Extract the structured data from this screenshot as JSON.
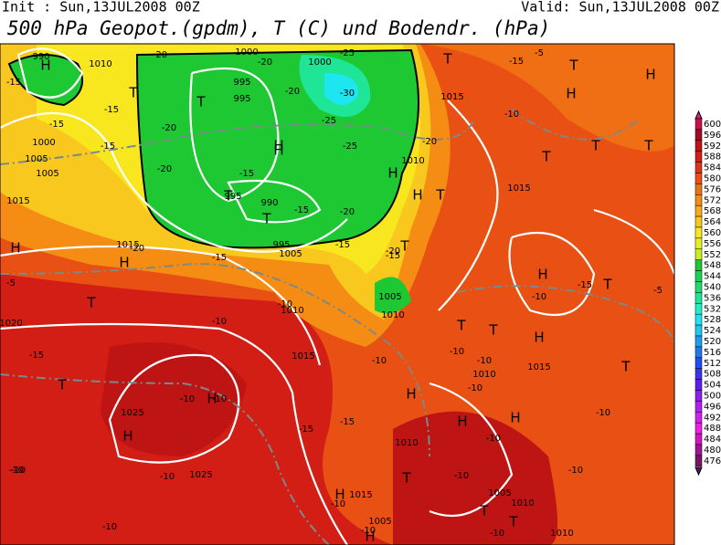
{
  "header": {
    "init": "Init : Sun,13JUL2008 00Z",
    "valid": "Valid: Sun,13JUL2008 00Z",
    "title": "500 hPa Geopot.(gpdm), T (C) und Bodendr. (hPa)"
  },
  "colorbar": {
    "ticks": [
      600,
      596,
      592,
      588,
      584,
      580,
      576,
      572,
      568,
      564,
      560,
      556,
      552,
      548,
      544,
      540,
      536,
      532,
      528,
      524,
      520,
      516,
      512,
      508,
      504,
      500,
      496,
      492,
      488,
      484,
      480,
      476
    ],
    "colors": [
      "#c8104a",
      "#a00a28",
      "#be1414",
      "#d21e14",
      "#e03214",
      "#e85014",
      "#f06e14",
      "#f58c14",
      "#f8aa1a",
      "#f8c81e",
      "#f8e61e",
      "#e6f01e",
      "#c8f01e",
      "#1ec832",
      "#1ed250",
      "#1edc6e",
      "#1ee696",
      "#1ef0c8",
      "#1ee6f0",
      "#1ec8f0",
      "#1e9ef0",
      "#1e78f0",
      "#1e50f0",
      "#3c32f0",
      "#5a1ef0",
      "#8c1ef0",
      "#b41ef0",
      "#d21ef0",
      "#f01ee6",
      "#d214be",
      "#a01496",
      "#781464"
    ]
  },
  "map_labels": [
    "990",
    "1010",
    "-20",
    "1000",
    "-20",
    "1000",
    "-25",
    "-15",
    "-5",
    "-15",
    "-15",
    "995",
    "995",
    "-30",
    "-15",
    "1015",
    "-10",
    "1000",
    "1005",
    "1005",
    "-20",
    "-25",
    "-20",
    "-25",
    "-15",
    "-20",
    "1010",
    "1015",
    "995",
    "990",
    "-15",
    "-20",
    "-20",
    "-15",
    "995",
    "-15",
    "1005",
    "-20",
    "-5",
    "1015",
    "-20",
    "-15",
    "-10",
    "-15",
    "1015",
    "-10",
    "1005",
    "1010",
    "1010",
    "1020",
    "-10",
    "-15",
    "1015",
    "-10",
    "-10",
    "-10",
    "-15",
    "1010",
    "1015",
    "-10",
    "-15",
    "-10",
    "1025",
    "-10",
    "-10",
    "-10",
    "1010",
    "-15",
    "-10",
    "-10",
    "-10",
    "1025",
    "-10",
    "1015",
    "-10",
    "1005",
    "-10",
    "-10",
    "1005",
    "1010",
    "-10",
    "1010",
    "-10",
    "-5"
  ],
  "markers": [
    "H",
    "T",
    "T",
    "H",
    "H",
    "T",
    "H",
    "T",
    "H",
    "H",
    "T",
    "T",
    "H",
    "H",
    "T",
    "T",
    "T",
    "H",
    "T",
    "H",
    "T",
    "H",
    "T",
    "T",
    "T",
    "T",
    "H",
    "H",
    "H",
    "T",
    "H",
    "T",
    "H",
    "T",
    "H",
    "T",
    "H",
    "T"
  ]
}
